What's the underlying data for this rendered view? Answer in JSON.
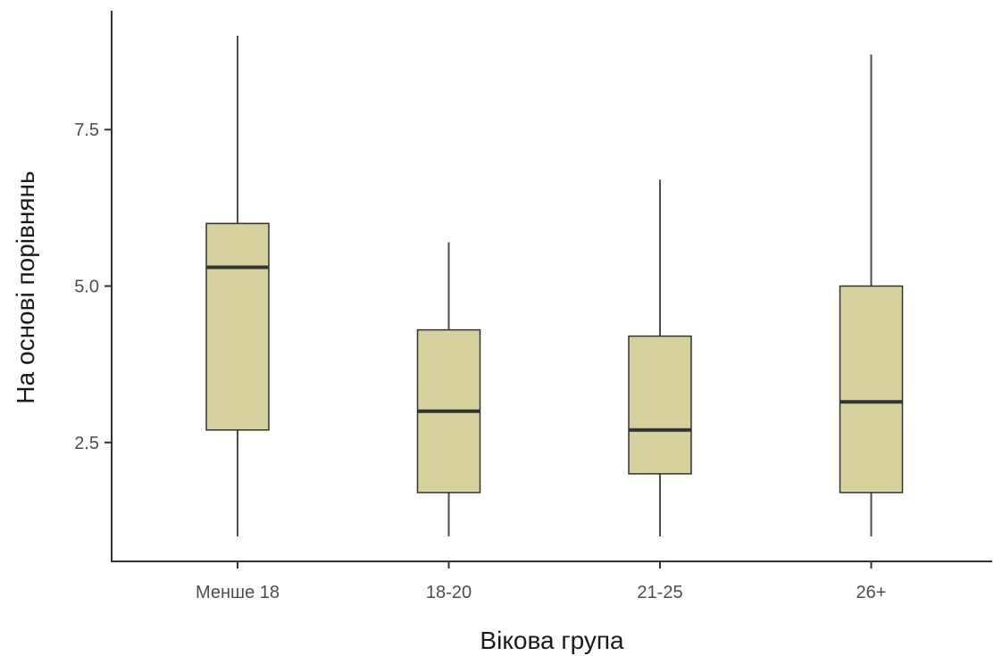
{
  "chart_data": {
    "type": "box",
    "xlabel": "Вікова група",
    "ylabel": "На основі порівнянь",
    "categories": [
      "Менше 18",
      "18-20",
      "21-25",
      "26+"
    ],
    "boxes": [
      {
        "category": "Менше 18",
        "min": 1.0,
        "q1": 2.7,
        "median": 5.3,
        "q3": 6.0,
        "max": 9.0
      },
      {
        "category": "18-20",
        "min": 1.0,
        "q1": 1.7,
        "median": 3.0,
        "q3": 4.3,
        "max": 5.7
      },
      {
        "category": "21-25",
        "min": 1.0,
        "q1": 2.0,
        "median": 2.7,
        "q3": 4.2,
        "max": 6.7
      },
      {
        "category": "26+",
        "min": 1.0,
        "q1": 1.7,
        "median": 3.15,
        "q3": 5.0,
        "max": 8.7
      }
    ],
    "yticks": [
      2.5,
      5.0,
      7.5
    ],
    "ytick_labels": [
      "2.5",
      "5.0",
      "7.5"
    ],
    "ylim": [
      0.6,
      9.4
    ],
    "grid": false,
    "colors": {
      "box_fill": "#d6d19f",
      "box_stroke": "#333333",
      "axis": "#333333"
    }
  }
}
